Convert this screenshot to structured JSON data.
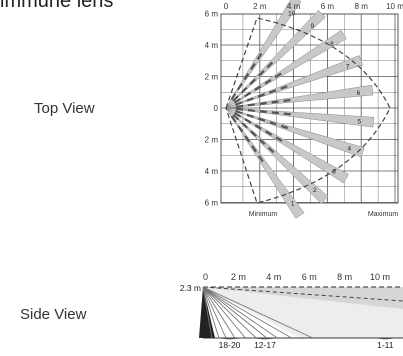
{
  "header": {
    "title": "immune lens"
  },
  "top_view": {
    "label": "Top View",
    "x_ticks": [
      "0",
      "2 m",
      "4 m",
      "6 m",
      "8 m",
      "10 m"
    ],
    "y_ticks": [
      "6 m",
      "4 m",
      "2 m",
      "0",
      "2 m",
      "4 m",
      "6 m"
    ],
    "bottom_labels": {
      "left": "Minimum",
      "right": "Maximum"
    },
    "beam_numbers": [
      "1",
      "2",
      "3",
      "4",
      "5",
      "6",
      "7",
      "8",
      "9",
      "10"
    ]
  },
  "side_view": {
    "label": "Side View",
    "height_label": "2.3 m",
    "x_ticks": [
      "0",
      "2 m",
      "4 m",
      "6 m",
      "8 m",
      "10 m"
    ],
    "zone_labels": [
      "18-20",
      "12-17",
      "1-11"
    ]
  },
  "colors": {
    "grid": "#555555",
    "beam": "#c8c8c8",
    "beam_dark": "#555555"
  }
}
